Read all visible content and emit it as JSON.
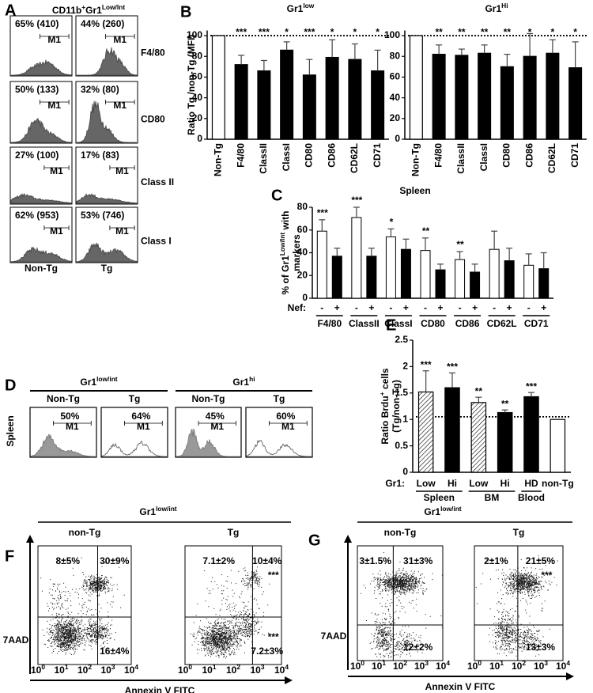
{
  "panels": {
    "A": {
      "label": "A",
      "title": [
        {
          "text": "CD11b"
        },
        {
          "sup": "+"
        },
        {
          "text": "Gr1"
        },
        {
          "sup": "Low/Int"
        }
      ],
      "gate": "M1",
      "rows": [
        {
          "marker": "F4/80",
          "non_tg": "65% (410)",
          "tg": "44% (260)"
        },
        {
          "marker": "CD80",
          "non_tg": "50% (133)",
          "tg": "32% (80)"
        },
        {
          "marker": "Class II",
          "non_tg": "27% (100)",
          "tg": "17% (83)"
        },
        {
          "marker": "Class I",
          "non_tg": "62% (953)",
          "tg": "53% (746)"
        }
      ],
      "columns": [
        "Non-Tg",
        "Tg"
      ]
    },
    "D": {
      "label": "D",
      "side_label": "Spleen",
      "gate": "M1",
      "groups": [
        {
          "title": [
            {
              "text": "Gr1"
            },
            {
              "sup": "low/int"
            }
          ],
          "columns": [
            "Non-Tg",
            "Tg"
          ],
          "percents": [
            "50%",
            "64%"
          ]
        },
        {
          "title": [
            {
              "text": "Gr1"
            },
            {
              "sup": "hi"
            }
          ],
          "columns": [
            "Non-Tg",
            "Tg"
          ],
          "percents": [
            "45%",
            "60%"
          ]
        }
      ]
    },
    "F": {
      "label": "F",
      "title": [
        {
          "text": "Gr1"
        },
        {
          "sup": "low/int"
        }
      ],
      "columns": [
        "non-Tg",
        "Tg"
      ],
      "quadrants": [
        {
          "upper_left": "8±5%",
          "upper_right": "30±9%",
          "lower_right": "16±4%"
        },
        {
          "upper_left": "7.1±2%",
          "upper_right": "10±4%",
          "upper_right_sig": "***",
          "lower_right_sig": "***",
          "lower_right": "7.2±3%"
        }
      ],
      "y_label": "7AAD",
      "x_label": "Annexin V FITC",
      "x_ticks": [
        [
          {
            "text": "10"
          },
          {
            "sup": "0"
          }
        ],
        [
          {
            "text": "10"
          },
          {
            "sup": "1"
          }
        ],
        [
          {
            "text": "10"
          },
          {
            "sup": "2"
          }
        ],
        [
          {
            "text": "10"
          },
          {
            "sup": "3"
          }
        ],
        [
          {
            "text": "10"
          },
          {
            "sup": "4"
          }
        ]
      ]
    },
    "G": {
      "label": "G",
      "title": [
        {
          "text": "Gr1"
        },
        {
          "sup": "low/int"
        }
      ],
      "columns": [
        "non-Tg",
        "Tg"
      ],
      "quadrants": [
        {
          "upper_left": "3±1.5%",
          "upper_right": "31±3%",
          "lower_right": "12±2%"
        },
        {
          "upper_left": "2±1%",
          "upper_right": "21±5%",
          "upper_right_sig": "***",
          "lower_right": "13±3%"
        }
      ],
      "y_label": "7AAD",
      "x_label": "Annexin V FITC",
      "x_ticks": [
        [
          {
            "text": "10"
          },
          {
            "sup": "0"
          }
        ],
        [
          {
            "text": "10"
          },
          {
            "sup": "1"
          }
        ],
        [
          {
            "text": "10"
          },
          {
            "sup": "2"
          }
        ],
        [
          {
            "text": "10"
          },
          {
            "sup": "3"
          }
        ],
        [
          {
            "text": "10"
          },
          {
            "sup": "4"
          }
        ]
      ]
    }
  },
  "chart_data": [
    {
      "type": "bar",
      "panel_label": "B",
      "title": [
        {
          "text": "Gr1"
        },
        {
          "sup": "low"
        }
      ],
      "y_label": [
        {
          "text": "Ratio Tg /non-Tg (MFI)"
        }
      ],
      "categories": [
        "Non-Tg",
        "F4/80",
        "ClassII",
        "ClassI",
        "CD80",
        "CD86",
        "CD62L",
        "CD71"
      ],
      "values": [
        100,
        72,
        66,
        86,
        62,
        79,
        77,
        66
      ],
      "errors": [
        null,
        9,
        10,
        8,
        15,
        17,
        15,
        20
      ],
      "significance": [
        null,
        "***",
        "***",
        "*",
        "***",
        "*",
        "*",
        "*"
      ],
      "bar_fills": [
        "#ffffff",
        "#000000",
        "#000000",
        "#000000",
        "#000000",
        "#000000",
        "#000000",
        "#000000"
      ],
      "reference_line": 100,
      "ylim": [
        0,
        105
      ],
      "yticks": [
        0,
        20,
        40,
        60,
        80,
        100
      ]
    },
    {
      "type": "bar",
      "title": [
        {
          "text": "Gr1"
        },
        {
          "sup": "Hi"
        }
      ],
      "categories": [
        "Non-Tg",
        "F4/80",
        "ClassII",
        "ClassI",
        "CD80",
        "CD86",
        "CD62L",
        "CD71"
      ],
      "values": [
        100,
        82,
        81,
        83,
        70,
        80,
        83,
        69
      ],
      "errors": [
        null,
        9,
        6,
        8,
        12,
        22,
        13,
        25
      ],
      "significance": [
        null,
        "**",
        "**",
        "**",
        "**",
        "*",
        "*",
        "*"
      ],
      "bar_fills": [
        "#ffffff",
        "#000000",
        "#000000",
        "#000000",
        "#000000",
        "#000000",
        "#000000",
        "#000000"
      ],
      "reference_line": 100,
      "ylim": [
        0,
        105
      ],
      "yticks": [
        0,
        20,
        40,
        60,
        80,
        100
      ]
    },
    {
      "type": "grouped_bar",
      "panel_label": "C",
      "title": [
        {
          "text": "Spleen"
        }
      ],
      "y_label": [
        {
          "text": "% of Gr1"
        },
        {
          "sup": "Low/Int"
        },
        {
          "text": " with"
        }
      ],
      "y_label_line2": "markers",
      "categories": [
        "F4/80",
        "ClassII",
        "ClassI",
        "CD80",
        "CD86",
        "CD62L",
        "CD71"
      ],
      "group_label": "Nef:",
      "series": [
        {
          "name": "-",
          "color": "#ffffff",
          "values": [
            59,
            71,
            54,
            42,
            34,
            43,
            29
          ],
          "errors": [
            10,
            9,
            7,
            11,
            7,
            16,
            10
          ]
        },
        {
          "name": "+",
          "color": "#000000",
          "values": [
            37,
            37,
            43,
            25,
            23,
            33,
            26
          ],
          "errors": [
            7,
            7,
            9,
            5,
            7,
            11,
            14
          ]
        }
      ],
      "significance": [
        "***",
        "***",
        "*",
        "**",
        "**",
        null,
        null
      ],
      "ylim": [
        0,
        80
      ],
      "yticks": [
        0,
        20,
        40,
        60,
        80
      ]
    },
    {
      "type": "bar",
      "panel_label": "E",
      "y_label": [
        {
          "text": "Ratio Brdu"
        },
        {
          "sup": "+"
        },
        {
          "text": " cells"
        }
      ],
      "y_label_line2": "(Tg/non-Tg)",
      "categories": [
        "Low",
        "Hi",
        "Low",
        "Hi",
        "HD",
        "non-Tg"
      ],
      "category_prefix": "Gr1:",
      "group_labels": [
        "Spleen",
        "BM",
        "Blood"
      ],
      "values": [
        1.52,
        1.6,
        1.32,
        1.13,
        1.43,
        1.0
      ],
      "errors": [
        0.4,
        0.28,
        0.1,
        0.05,
        0.08,
        null
      ],
      "significance": [
        "***",
        "***",
        "**",
        "**",
        "***",
        null
      ],
      "bar_fills": [
        "hatched",
        "#000000",
        "hatched",
        "#000000",
        "#000000",
        "#ffffff"
      ],
      "reference_line": 1.05,
      "ylim": [
        0,
        2.5
      ],
      "yticks": [
        0,
        0.5,
        1,
        1.5,
        2,
        2.5
      ]
    }
  ]
}
